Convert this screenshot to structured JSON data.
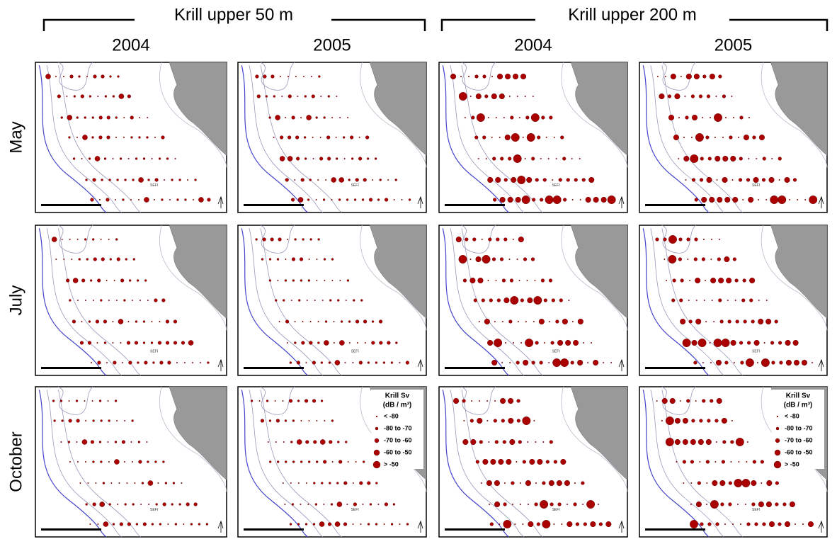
{
  "header": {
    "groups": [
      "Krill upper 50 m",
      "Krill upper 200 m"
    ],
    "years": [
      "2004",
      "2005",
      "2004",
      "2005"
    ],
    "months": [
      "May",
      "July",
      "October"
    ]
  },
  "map": {
    "site_label": "SEFI"
  },
  "legend": {
    "title": "Krill Sv",
    "unit": "(dB / m³)",
    "entries": [
      "< -80",
      "-80 to -70",
      "-70 to -60",
      "-60 to -50",
      "> -50"
    ]
  }
}
